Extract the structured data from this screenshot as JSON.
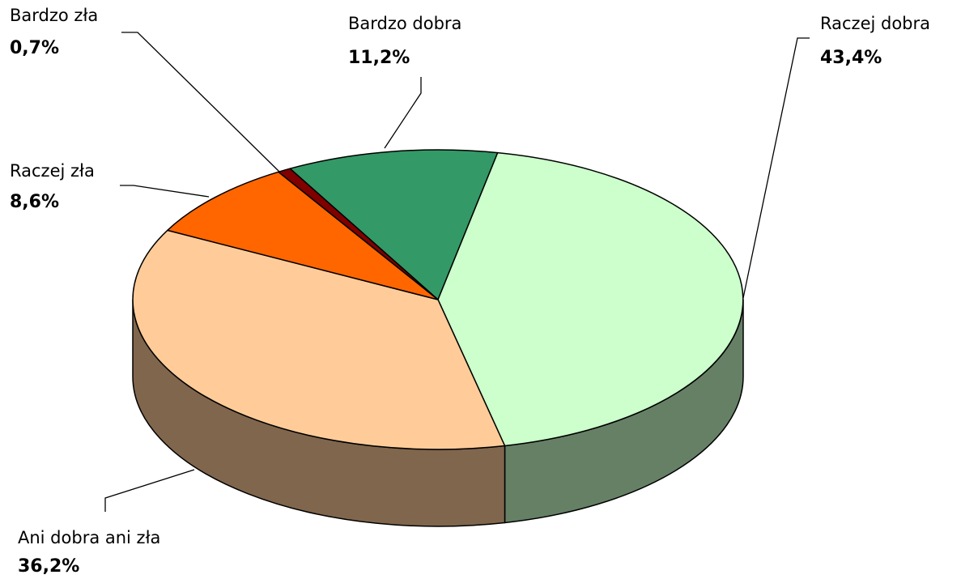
{
  "chart_data": {
    "type": "pie3d",
    "categories": [
      "Bardzo dobra",
      "Raczej dobra",
      "Ani dobra ani zła",
      "Raczej zła",
      "Bardzo zła"
    ],
    "values": [
      11.2,
      43.4,
      36.2,
      8.6,
      0.7
    ],
    "value_labels": [
      "11,2%",
      "43,4%",
      "36,2%",
      "8,6%",
      "0,7%"
    ],
    "colors": [
      "#339966",
      "#ccffcc",
      "#ffcc99",
      "#ff6600",
      "#800000"
    ]
  }
}
